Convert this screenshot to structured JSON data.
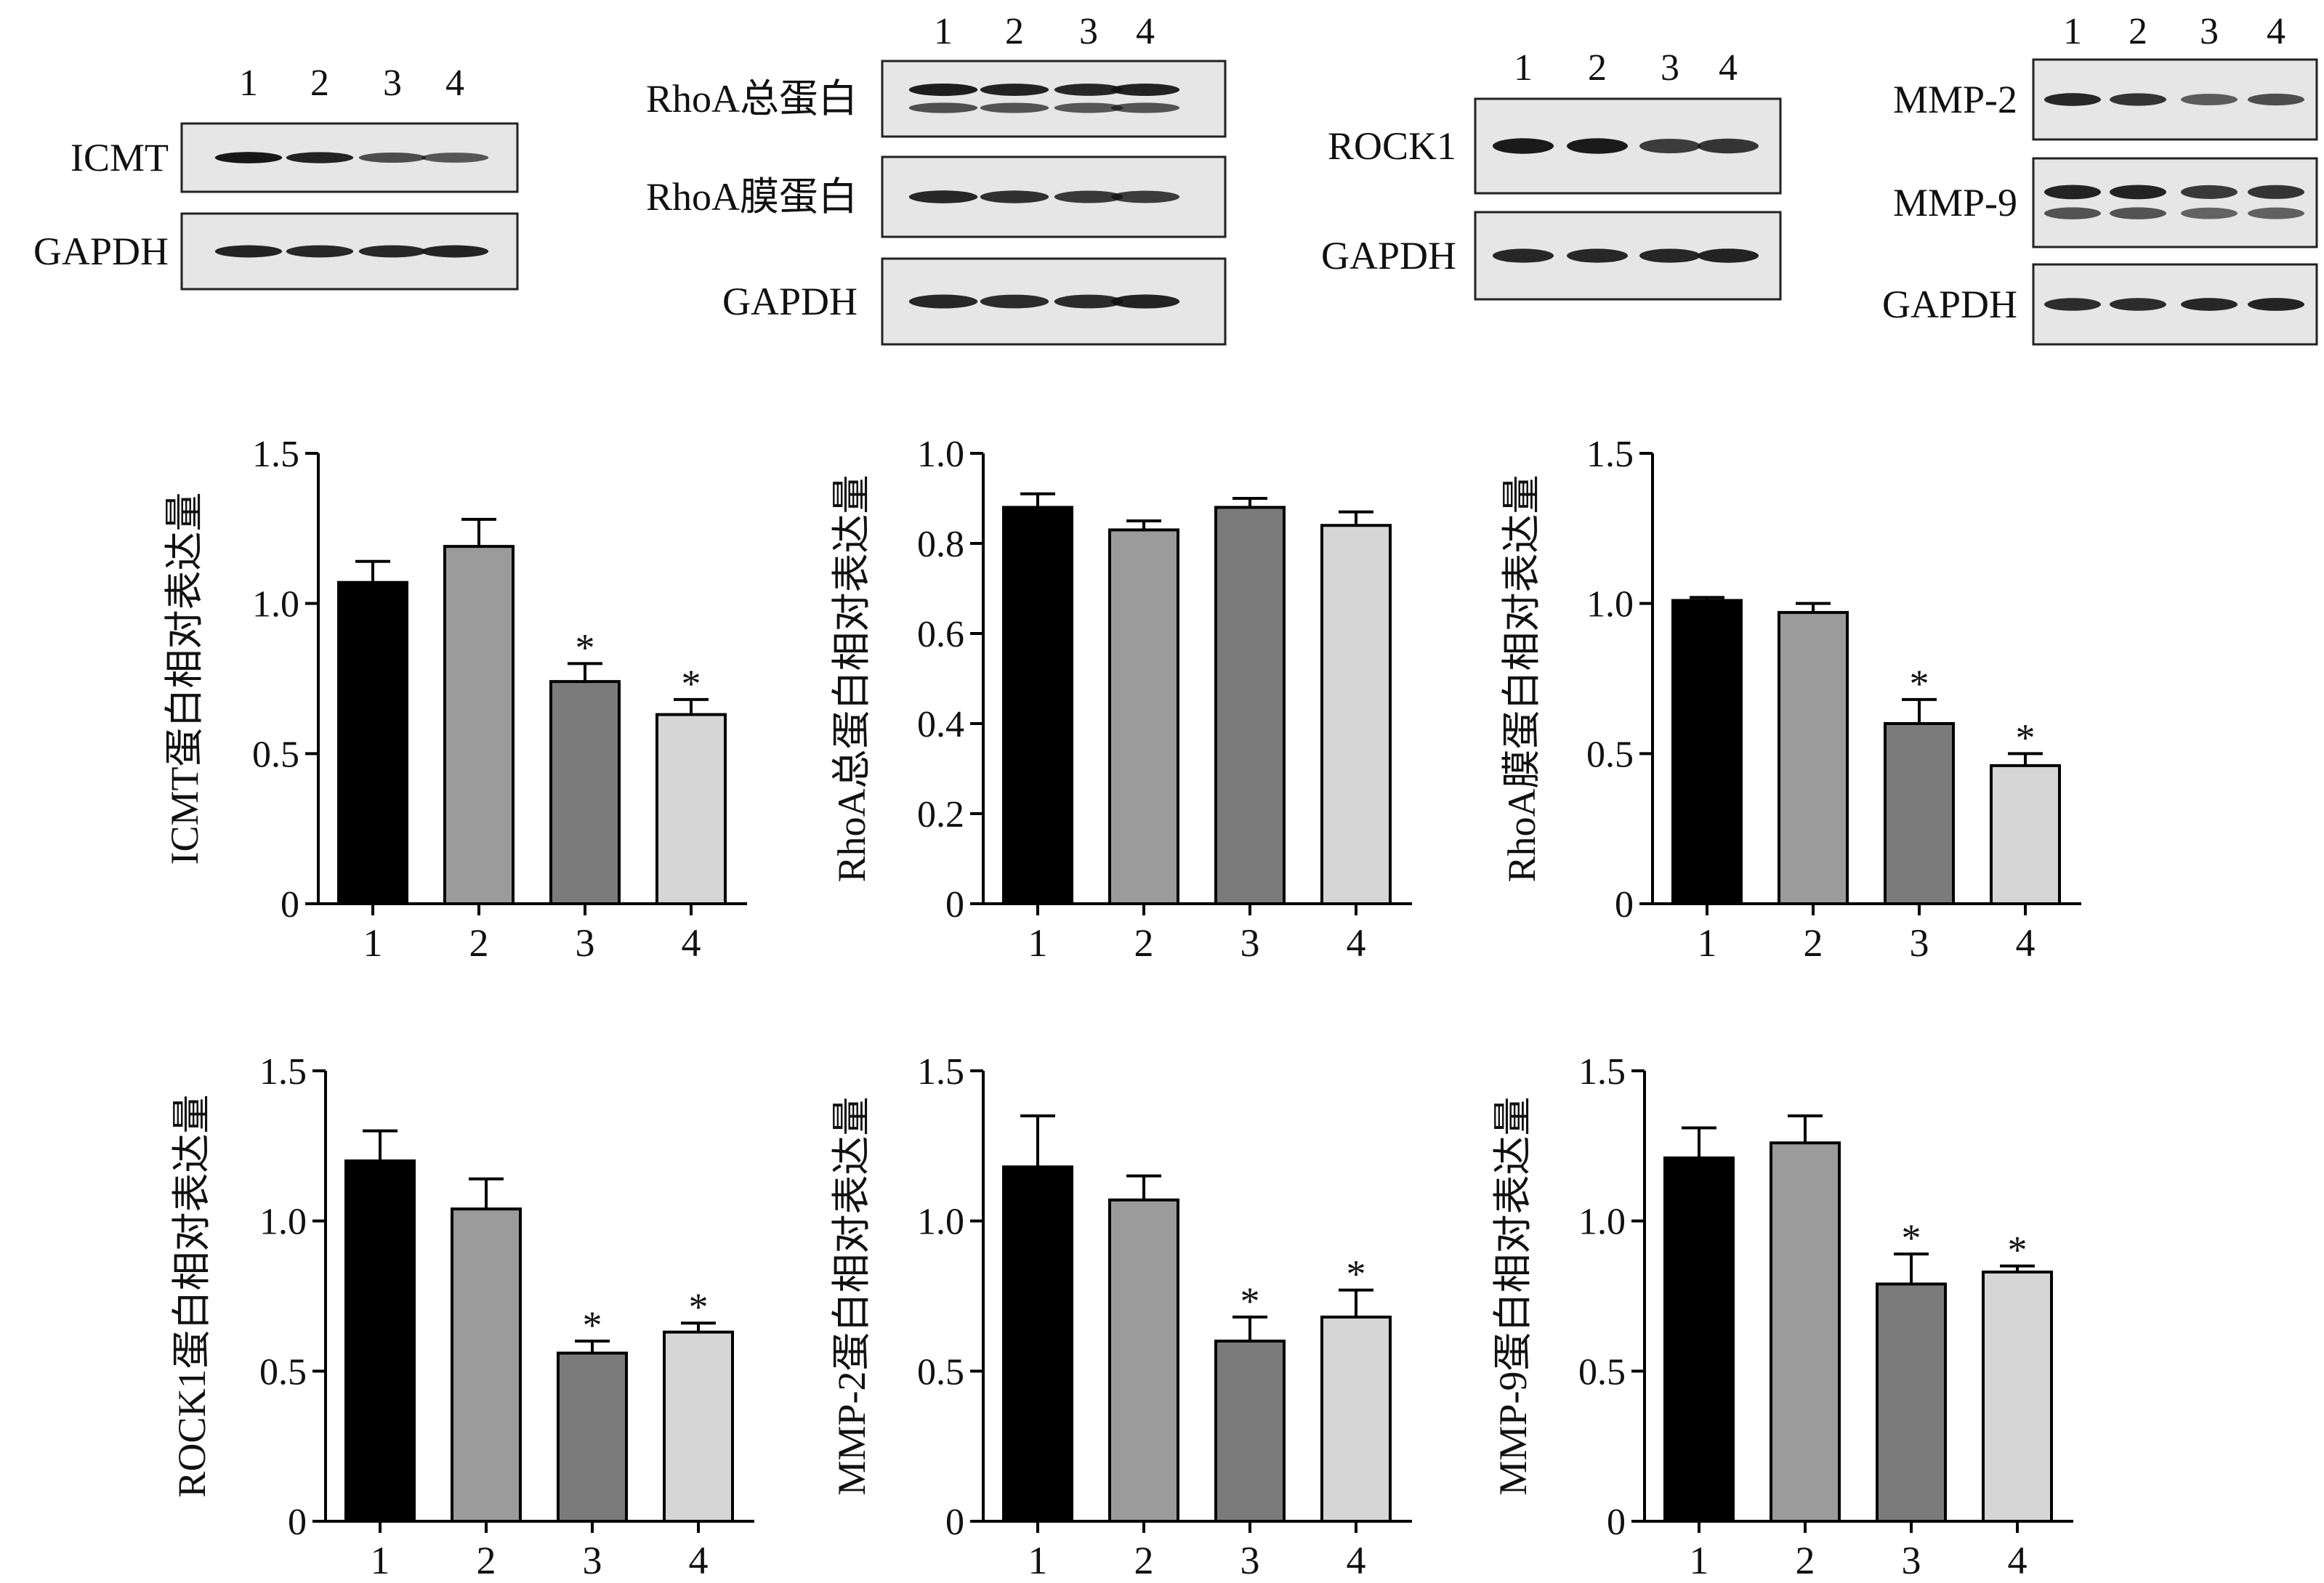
{
  "colors": {
    "lane_fills": [
      "#000000",
      "#9b9b9b",
      "#7b7b7b",
      "#d6d6d6"
    ],
    "axis": "#000000",
    "blot_background": "#e6e6e6",
    "band": "#121212"
  },
  "blots": [
    {
      "lanes": [
        "1",
        "2",
        "3",
        "4"
      ],
      "rows": [
        {
          "label": "ICMT",
          "bands": [
            0.98,
            0.92,
            0.72,
            0.68
          ]
        },
        {
          "label": "GAPDH",
          "bands": [
            0.92,
            0.9,
            0.9,
            0.92
          ]
        }
      ]
    },
    {
      "lanes": [
        "1",
        "2",
        "3",
        "4"
      ],
      "rows": [
        {
          "label": "RhoA总蛋白",
          "bands": [
            0.95,
            0.92,
            0.9,
            0.93
          ],
          "doublet": true
        },
        {
          "label": "RhoA膜蛋白",
          "bands": [
            0.9,
            0.86,
            0.82,
            0.8
          ]
        },
        {
          "label": "GAPDH",
          "bands": [
            0.9,
            0.88,
            0.88,
            0.92
          ]
        }
      ]
    },
    {
      "lanes": [
        "1",
        "2",
        "3",
        "4"
      ],
      "rows": [
        {
          "label": "ROCK1",
          "bands": [
            0.96,
            0.96,
            0.8,
            0.84
          ]
        },
        {
          "label": "GAPDH",
          "bands": [
            0.9,
            0.9,
            0.9,
            0.92
          ]
        }
      ]
    },
    {
      "lanes": [
        "1",
        "2",
        "3",
        "4"
      ],
      "rows": [
        {
          "label": "MMP-2",
          "bands": [
            0.9,
            0.84,
            0.66,
            0.72
          ]
        },
        {
          "label": "MMP-9",
          "bands": [
            0.92,
            0.92,
            0.82,
            0.84
          ],
          "doublet": true
        },
        {
          "label": "GAPDH",
          "bands": [
            0.88,
            0.88,
            0.9,
            0.92
          ]
        }
      ]
    }
  ],
  "chart_data": [
    {
      "type": "bar",
      "ylabel": "ICMT蛋白相对表达量",
      "categories": [
        "1",
        "2",
        "3",
        "4"
      ],
      "values": [
        1.07,
        1.19,
        0.74,
        0.63
      ],
      "errors": [
        0.07,
        0.09,
        0.06,
        0.05
      ],
      "significance": [
        "",
        "",
        "*",
        "*"
      ],
      "ylim": [
        0,
        1.5
      ],
      "yticks": [
        "0",
        "0.5",
        "1.0",
        "1.5"
      ]
    },
    {
      "type": "bar",
      "ylabel": "RhoA总蛋白相对表达量",
      "categories": [
        "1",
        "2",
        "3",
        "4"
      ],
      "values": [
        0.88,
        0.83,
        0.88,
        0.84
      ],
      "errors": [
        0.03,
        0.02,
        0.02,
        0.03
      ],
      "significance": [
        "",
        "",
        "",
        ""
      ],
      "ylim": [
        0,
        1.0
      ],
      "yticks": [
        "0",
        "0.2",
        "0.4",
        "0.6",
        "0.8",
        "1.0"
      ]
    },
    {
      "type": "bar",
      "ylabel": "RhoA膜蛋白相对表达量",
      "categories": [
        "1",
        "2",
        "3",
        "4"
      ],
      "values": [
        1.01,
        0.97,
        0.6,
        0.46
      ],
      "errors": [
        0.01,
        0.03,
        0.08,
        0.04
      ],
      "significance": [
        "",
        "",
        "*",
        "*"
      ],
      "ylim": [
        0,
        1.5
      ],
      "yticks": [
        "0",
        "0.5",
        "1.0",
        "1.5"
      ]
    },
    {
      "type": "bar",
      "ylabel": "ROCK1蛋白相对表达量",
      "categories": [
        "1",
        "2",
        "3",
        "4"
      ],
      "values": [
        1.2,
        1.04,
        0.56,
        0.63
      ],
      "errors": [
        0.1,
        0.1,
        0.04,
        0.03
      ],
      "significance": [
        "",
        "",
        "*",
        "*"
      ],
      "ylim": [
        0,
        1.5
      ],
      "yticks": [
        "0",
        "0.5",
        "1.0",
        "1.5"
      ]
    },
    {
      "type": "bar",
      "ylabel": "MMP-2蛋白相对表达量",
      "categories": [
        "1",
        "2",
        "3",
        "4"
      ],
      "values": [
        1.18,
        1.07,
        0.6,
        0.68
      ],
      "errors": [
        0.17,
        0.08,
        0.08,
        0.09
      ],
      "significance": [
        "",
        "",
        "*",
        "*"
      ],
      "ylim": [
        0,
        1.5
      ],
      "yticks": [
        "0",
        "0.5",
        "1.0",
        "1.5"
      ]
    },
    {
      "type": "bar",
      "ylabel": "MMP-9蛋白相对表达量",
      "categories": [
        "1",
        "2",
        "3",
        "4"
      ],
      "values": [
        1.21,
        1.26,
        0.79,
        0.83
      ],
      "errors": [
        0.1,
        0.09,
        0.1,
        0.02
      ],
      "significance": [
        "",
        "",
        "*",
        "*"
      ],
      "ylim": [
        0,
        1.5
      ],
      "yticks": [
        "0",
        "0.5",
        "1.0",
        "1.5"
      ]
    }
  ]
}
